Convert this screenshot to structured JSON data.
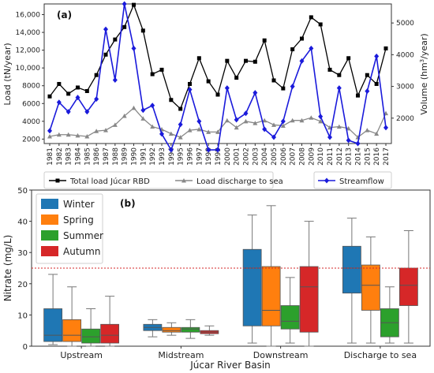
{
  "chart_data": [
    {
      "type": "line",
      "panel_label": "(a)",
      "ylabel_left": "Load (tN/year)",
      "ylabel_right_prefix": "Volume (hm",
      "ylabel_right_exp": "3",
      "ylabel_right_suffix": "/year)",
      "ylim_left": [
        1500,
        17200
      ],
      "ylim_right": [
        1200,
        5600
      ],
      "yticks_left": [
        2000,
        4000,
        6000,
        8000,
        10000,
        12000,
        14000,
        16000
      ],
      "yticks_left_labels": [
        "2000",
        "4000",
        "6000",
        "8000",
        "10,000",
        "12,000",
        "14,000",
        "16,000"
      ],
      "yticks_right": [
        2000,
        3000,
        4000,
        5000
      ],
      "x": [
        "1981",
        "1982",
        "1983",
        "1984",
        "1985",
        "1986",
        "1987",
        "1988",
        "1989",
        "1990",
        "1991",
        "1992",
        "1993",
        "1994",
        "1995",
        "1996",
        "1997",
        "1998",
        "1999",
        "2000",
        "2001",
        "2002",
        "2003",
        "2004",
        "2005",
        "2006",
        "2007",
        "2008",
        "2009",
        "2010",
        "2011",
        "2012",
        "2013",
        "2014",
        "2015",
        "2016",
        "2017"
      ],
      "legend_position": "bottom",
      "series": [
        {
          "name": "Total load Júcar RBD",
          "axis": "left",
          "color": "#000000",
          "marker": "square",
          "values": [
            6800,
            8200,
            7100,
            7800,
            7400,
            9200,
            11500,
            13200,
            14600,
            17100,
            14200,
            9300,
            9800,
            6400,
            5400,
            8200,
            11100,
            8500,
            7000,
            10800,
            8900,
            10800,
            10700,
            13100,
            8600,
            7700,
            12100,
            13300,
            15700,
            14900,
            9800,
            9200,
            11100,
            6900,
            9200,
            8200,
            12200
          ]
        },
        {
          "name": "Load discharge to sea",
          "axis": "left",
          "color": "#888888",
          "marker": "triangle",
          "values": [
            2300,
            2500,
            2500,
            2400,
            2300,
            2900,
            3000,
            3600,
            4600,
            5500,
            4300,
            3400,
            3100,
            2600,
            2200,
            3000,
            3100,
            2800,
            2800,
            4100,
            3300,
            4000,
            3800,
            4100,
            3600,
            3500,
            4100,
            4100,
            4400,
            4000,
            3300,
            3400,
            3200,
            2200,
            3000,
            2600,
            4900
          ]
        },
        {
          "name": "Streamflow",
          "axis": "right",
          "color": "#1a1adb",
          "marker": "diamond",
          "values": [
            1600,
            2500,
            2200,
            2650,
            2200,
            2600,
            4800,
            3200,
            5600,
            4200,
            2250,
            2400,
            1500,
            1000,
            1800,
            2900,
            1900,
            1000,
            1000,
            2950,
            1950,
            2150,
            2800,
            1650,
            1400,
            1900,
            3000,
            3800,
            4200,
            2050,
            1400,
            2950,
            1300,
            1200,
            2850,
            3950,
            1700
          ]
        }
      ]
    },
    {
      "type": "box",
      "panel_label": "(b)",
      "ylabel": "Nitrate (mg/L)",
      "xlabel": "Júcar River Basin",
      "ylim": [
        0,
        50
      ],
      "yticks": [
        0,
        10,
        20,
        30,
        40,
        50
      ],
      "reference_line": 25,
      "reference_color": "#d62728",
      "legend_position": "top-left",
      "categories": [
        "Upstream",
        "Midstream",
        "Downstream",
        "Discharge to sea"
      ],
      "series": [
        {
          "name": "Winter",
          "color": "#1f77b4",
          "boxes": [
            {
              "min": 0.5,
              "q1": 1.5,
              "median": 3.5,
              "q3": 12.0,
              "max": 23.0
            },
            {
              "min": 3.0,
              "q1": 5.0,
              "median": 6.0,
              "q3": 7.0,
              "max": 8.5
            },
            {
              "min": 1.0,
              "q1": 6.5,
              "median": 25.0,
              "q3": 31.0,
              "max": 42.0
            },
            {
              "min": 1.0,
              "q1": 17.0,
              "median": 25.0,
              "q3": 32.0,
              "max": 41.0
            }
          ]
        },
        {
          "name": "Spring",
          "color": "#ff7f0e",
          "boxes": [
            {
              "min": 0.0,
              "q1": 1.5,
              "median": 3.5,
              "q3": 8.5,
              "max": 19.0
            },
            {
              "min": 3.5,
              "q1": 4.5,
              "median": 5.0,
              "q3": 6.0,
              "max": 7.5
            },
            {
              "min": 0.0,
              "q1": 6.5,
              "median": 11.5,
              "q3": 25.5,
              "max": 45.0
            },
            {
              "min": 1.0,
              "q1": 11.5,
              "median": 19.5,
              "q3": 26.0,
              "max": 35.0
            }
          ]
        },
        {
          "name": "Summer",
          "color": "#2ca02c",
          "boxes": [
            {
              "min": 0.0,
              "q1": 1.0,
              "median": 3.0,
              "q3": 5.5,
              "max": 12.0
            },
            {
              "min": 2.5,
              "q1": 4.5,
              "median": 5.5,
              "q3": 6.0,
              "max": 8.5
            },
            {
              "min": 1.0,
              "q1": 5.5,
              "median": 8.0,
              "q3": 13.0,
              "max": 22.0
            },
            {
              "min": 1.0,
              "q1": 3.0,
              "median": 7.5,
              "q3": 12.0,
              "max": 19.0
            }
          ]
        },
        {
          "name": "Autumn",
          "color": "#d62728",
          "boxes": [
            {
              "min": 0.0,
              "q1": 1.0,
              "median": 3.5,
              "q3": 7.0,
              "max": 16.0
            },
            {
              "min": 3.5,
              "q1": 4.0,
              "median": 4.5,
              "q3": 5.0,
              "max": 6.5
            },
            {
              "min": 0.0,
              "q1": 4.5,
              "median": 19.0,
              "q3": 25.5,
              "max": 40.0
            },
            {
              "min": 1.0,
              "q1": 13.0,
              "median": 19.5,
              "q3": 25.0,
              "max": 37.0
            }
          ]
        }
      ]
    }
  ]
}
